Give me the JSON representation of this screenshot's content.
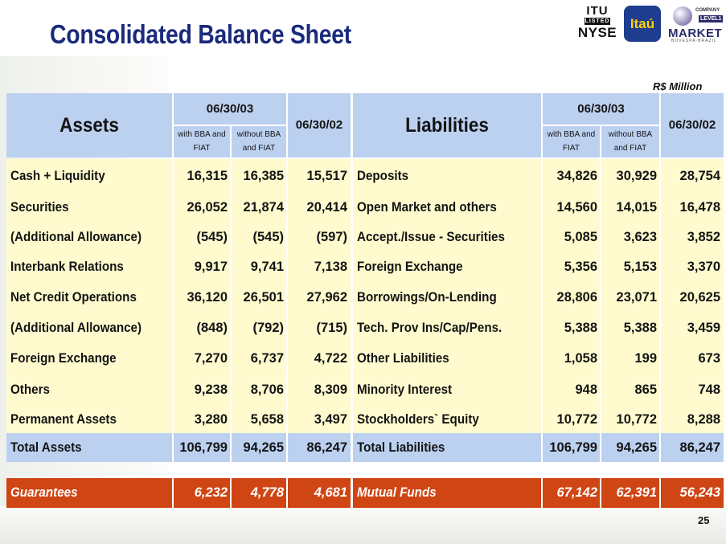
{
  "title": "Consolidated Balance Sheet",
  "logos": {
    "nyse_top": "ITU",
    "nyse_listed": "LISTED",
    "nyse_bottom": "NYSE",
    "itau": "Itaú",
    "market_company": "COMPANY",
    "market_level": "LEVEL1",
    "market_word": "MARKET",
    "market_bovespa": "BOVESPA·BRAZIL"
  },
  "unit": "R$ Million",
  "assets": {
    "header": "Assets",
    "date_current": "06/30/03",
    "date_prior": "06/30/02",
    "sub_with": [
      "with BBA and",
      "FIAT"
    ],
    "sub_without": [
      "without BBA",
      "and FIAT"
    ],
    "rows": [
      {
        "label": "Cash + Liquidity",
        "with": "16,315",
        "without": "16,385",
        "prior": "15,517"
      },
      {
        "label": "Securities",
        "with": "26,052",
        "without": "21,874",
        "prior": "20,414"
      },
      {
        "label": "(Additional Allowance)",
        "with": "(545)",
        "without": "(545)",
        "prior": "(597)"
      },
      {
        "label": "Interbank Relations",
        "with": "9,917",
        "without": "9,741",
        "prior": "7,138"
      },
      {
        "label": "Net Credit Operations",
        "with": "36,120",
        "without": "26,501",
        "prior": "27,962"
      },
      {
        "label": "(Additional Allowance)",
        "with": "(848)",
        "without": "(792)",
        "prior": "(715)"
      },
      {
        "label": "Foreign Exchange",
        "with": "7,270",
        "without": "6,737",
        "prior": "4,722"
      },
      {
        "label": "Others",
        "with": "9,238",
        "without": "8,706",
        "prior": "8,309"
      },
      {
        "label": "Permanent Assets",
        "with": "3,280",
        "without": "5,658",
        "prior": "3,497"
      }
    ],
    "total": {
      "label": "Total Assets",
      "with": "106,799",
      "without": "94,265",
      "prior": "86,247"
    },
    "guarantees": {
      "label": "Guarantees",
      "with": "6,232",
      "without": "4,778",
      "prior": "4,681"
    }
  },
  "liabilities": {
    "header": "Liabilities",
    "date_current": "06/30/03",
    "date_prior": "06/30/02",
    "sub_with": [
      "with BBA and",
      "FIAT"
    ],
    "sub_without": [
      "without BBA",
      "and FIAT"
    ],
    "rows": [
      {
        "label": "Deposits",
        "with": "34,826",
        "without": "30,929",
        "prior": "28,754"
      },
      {
        "label": "Open Market and others",
        "with": "14,560",
        "without": "14,015",
        "prior": "16,478"
      },
      {
        "label": "Accept./Issue - Securities",
        "with": "5,085",
        "without": "3,623",
        "prior": "3,852"
      },
      {
        "label": "Foreign Exchange",
        "with": "5,356",
        "without": "5,153",
        "prior": "3,370"
      },
      {
        "label": "Borrowings/On-Lending",
        "with": "28,806",
        "without": "23,071",
        "prior": "20,625"
      },
      {
        "label": "Tech. Prov Ins/Cap/Pens.",
        "with": "5,388",
        "without": "5,388",
        "prior": "3,459"
      },
      {
        "label": "Other Liabilities",
        "with": "1,058",
        "without": "199",
        "prior": "673"
      },
      {
        "label": "Minority Interest",
        "with": "948",
        "without": "865",
        "prior": "748"
      },
      {
        "label": "Stockholders` Equity",
        "with": "10,772",
        "without": "10,772",
        "prior": "8,288"
      }
    ],
    "total": {
      "label": "Total Liabilities",
      "with": "106,799",
      "without": "94,265",
      "prior": "86,247"
    },
    "mutual_funds": {
      "label": "Mutual Funds",
      "with": "67,142",
      "without": "62,391",
      "prior": "56,243"
    }
  },
  "page_number": "25",
  "colors": {
    "title": "#1a2a7c",
    "header_bg": "#bcd1f0",
    "body_bg": "#fffbcf",
    "highlight_bg": "#cf4514"
  }
}
